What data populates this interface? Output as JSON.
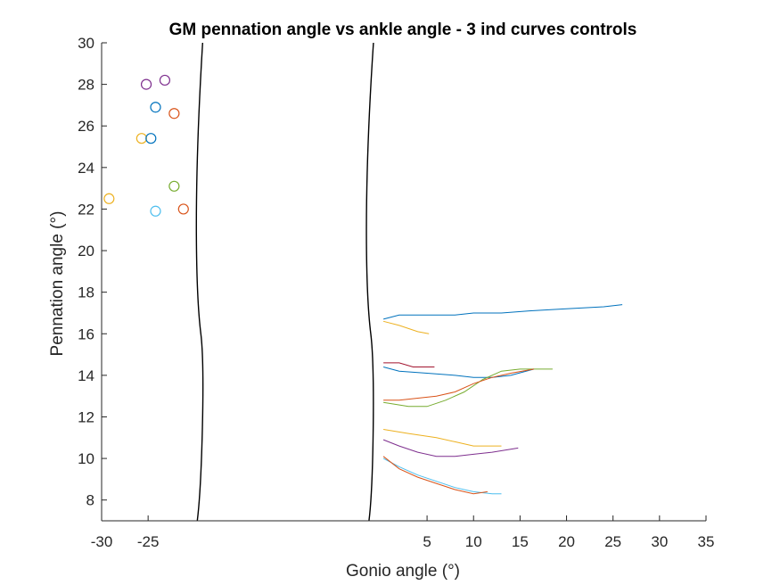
{
  "chart_data": {
    "type": "scatter",
    "title": "GM pennation angle vs ankle angle - 3 ind curves controls",
    "xlabel": "Gonio angle (°)",
    "ylabel": "Pennation angle (°)",
    "xlim": [
      -30,
      35
    ],
    "ylim": [
      7,
      30
    ],
    "x_ticks": [
      -30,
      -25,
      5,
      10,
      15,
      20,
      25,
      30,
      35
    ],
    "x_tick_labels": [
      "-30",
      "-25",
      "5",
      "10",
      "15",
      "20",
      "25",
      "30",
      "35"
    ],
    "y_ticks": [
      8,
      10,
      12,
      14,
      16,
      18,
      20,
      22,
      24,
      26,
      28,
      30
    ],
    "y_tick_labels": [
      "8",
      "10",
      "12",
      "14",
      "16",
      "18",
      "20",
      "22",
      "24",
      "26",
      "28",
      "30"
    ],
    "axis_break": {
      "from": -20,
      "to": 0
    },
    "grid": false,
    "scatter_points": [
      {
        "x": -25.2,
        "y": 28.0,
        "color": "#7E2F8E"
      },
      {
        "x": -23.2,
        "y": 28.2,
        "color": "#7E2F8E"
      },
      {
        "x": -24.2,
        "y": 26.9,
        "color": "#0072BD"
      },
      {
        "x": -22.2,
        "y": 26.6,
        "color": "#D95319"
      },
      {
        "x": -25.7,
        "y": 25.4,
        "color": "#EDB120"
      },
      {
        "x": -24.7,
        "y": 25.4,
        "color": "#0072BD"
      },
      {
        "x": -22.2,
        "y": 23.1,
        "color": "#77AC30"
      },
      {
        "x": -29.2,
        "y": 22.5,
        "color": "#EDB120"
      },
      {
        "x": -24.2,
        "y": 21.9,
        "color": "#4DBEEE"
      },
      {
        "x": -21.2,
        "y": 22.0,
        "color": "#D95319"
      }
    ],
    "series": [
      {
        "color": "#0072BD",
        "points": [
          [
            0.3,
            16.7
          ],
          [
            2,
            16.9
          ],
          [
            5,
            16.9
          ],
          [
            8,
            16.9
          ],
          [
            10,
            17.0
          ],
          [
            13,
            17.0
          ],
          [
            16,
            17.1
          ],
          [
            20,
            17.2
          ],
          [
            24,
            17.3
          ],
          [
            26,
            17.4
          ]
        ]
      },
      {
        "color": "#EDB120",
        "points": [
          [
            0.3,
            16.6
          ],
          [
            2,
            16.4
          ],
          [
            4,
            16.1
          ],
          [
            5.2,
            16.0
          ]
        ]
      },
      {
        "color": "#A2142F",
        "points": [
          [
            0.3,
            14.6
          ],
          [
            2,
            14.6
          ],
          [
            3.5,
            14.4
          ],
          [
            5.8,
            14.4
          ]
        ]
      },
      {
        "color": "#0072BD",
        "points": [
          [
            0.3,
            14.4
          ],
          [
            2,
            14.2
          ],
          [
            5,
            14.1
          ],
          [
            8,
            14.0
          ],
          [
            10,
            13.9
          ],
          [
            12,
            13.9
          ],
          [
            14,
            14.0
          ],
          [
            16.5,
            14.3
          ]
        ]
      },
      {
        "color": "#77AC30",
        "points": [
          [
            0.3,
            12.7
          ],
          [
            3,
            12.5
          ],
          [
            5,
            12.5
          ],
          [
            7,
            12.8
          ],
          [
            9,
            13.2
          ],
          [
            11,
            13.8
          ],
          [
            13,
            14.2
          ],
          [
            15,
            14.3
          ],
          [
            18.5,
            14.3
          ]
        ]
      },
      {
        "color": "#D95319",
        "points": [
          [
            0.3,
            12.8
          ],
          [
            2,
            12.8
          ],
          [
            4,
            12.9
          ],
          [
            6,
            13.0
          ],
          [
            8,
            13.2
          ],
          [
            10,
            13.6
          ],
          [
            12,
            13.9
          ],
          [
            14,
            14.1
          ],
          [
            16.5,
            14.3
          ]
        ]
      },
      {
        "color": "#EDB120",
        "points": [
          [
            0.3,
            11.4
          ],
          [
            3,
            11.2
          ],
          [
            6,
            11.0
          ],
          [
            8,
            10.8
          ],
          [
            10,
            10.6
          ],
          [
            13,
            10.6
          ]
        ]
      },
      {
        "color": "#7E2F8E",
        "points": [
          [
            0.3,
            10.9
          ],
          [
            2,
            10.6
          ],
          [
            4,
            10.3
          ],
          [
            6,
            10.1
          ],
          [
            8,
            10.1
          ],
          [
            10,
            10.2
          ],
          [
            12,
            10.3
          ],
          [
            14.8,
            10.5
          ]
        ]
      },
      {
        "color": "#4DBEEE",
        "points": [
          [
            0.3,
            10.0
          ],
          [
            2,
            9.6
          ],
          [
            4,
            9.2
          ],
          [
            6,
            8.9
          ],
          [
            8,
            8.6
          ],
          [
            10,
            8.4
          ],
          [
            12,
            8.3
          ],
          [
            13,
            8.3
          ]
        ]
      },
      {
        "color": "#D95319",
        "points": [
          [
            0.3,
            10.1
          ],
          [
            2,
            9.5
          ],
          [
            4,
            9.1
          ],
          [
            6,
            8.8
          ],
          [
            8,
            8.5
          ],
          [
            10,
            8.3
          ],
          [
            11.5,
            8.4
          ]
        ]
      }
    ]
  }
}
